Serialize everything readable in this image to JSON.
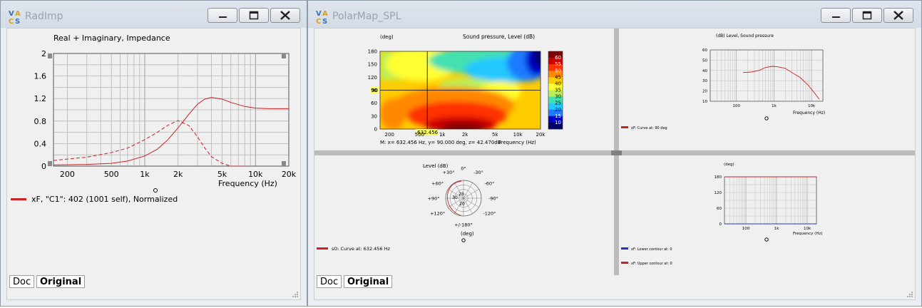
{
  "left_window": {
    "title": "RadImp",
    "tabs": [
      "Doc",
      "Original"
    ],
    "chart_data": {
      "type": "line",
      "title": "Real + Imaginary, Impedance",
      "xlabel": "Frequency  (Hz)",
      "ylabel": "",
      "x_scale": "log",
      "xlim": [
        150,
        20000
      ],
      "ylim": [
        0,
        2
      ],
      "x_ticks": [
        "200",
        "500",
        "1k",
        "2k",
        "5k",
        "10k",
        "20k"
      ],
      "y_ticks": [
        "0",
        "0.4",
        "0.8",
        "1.2",
        "1.6",
        "2"
      ],
      "series": [
        {
          "name": "real",
          "style": "solid",
          "x": [
            150,
            300,
            500,
            700,
            1000,
            1300,
            1600,
            2000,
            2500,
            3000,
            3500,
            4000,
            5000,
            6000,
            8000,
            10000,
            13000,
            16000,
            20000
          ],
          "y": [
            0.02,
            0.03,
            0.05,
            0.09,
            0.18,
            0.3,
            0.46,
            0.68,
            0.92,
            1.1,
            1.19,
            1.22,
            1.19,
            1.13,
            1.06,
            1.03,
            1.02,
            1.02,
            1.02
          ]
        },
        {
          "name": "imaginary",
          "style": "dashed",
          "x": [
            150,
            300,
            500,
            700,
            1000,
            1300,
            1600,
            2000,
            2500,
            3000,
            3500,
            4000,
            5000,
            6000,
            7000,
            8000
          ],
          "y": [
            0.1,
            0.16,
            0.24,
            0.32,
            0.47,
            0.6,
            0.72,
            0.81,
            0.72,
            0.52,
            0.32,
            0.17,
            0.05,
            0.0,
            0.0,
            0.0
          ]
        }
      ],
      "legend": "xF, \"C1\": 402 (1001 self), Normalized",
      "legend_color": "#cc2222",
      "grid": true
    }
  },
  "right_window": {
    "title": "PolarMap_SPL",
    "tabs": [
      "Doc",
      "Original"
    ],
    "heatmap": {
      "type": "heatmap",
      "title": "Sound pressure, Level  (dB)",
      "ylabel": "(deg)",
      "xlabel": "Frequency  (Hz)",
      "x_scale": "log",
      "xlim": [
        150,
        20000
      ],
      "ylim": [
        0,
        180
      ],
      "x_ticks": [
        "200",
        "500",
        "1k",
        "2k",
        "5k",
        "10k",
        "20k"
      ],
      "y_ticks": [
        "0",
        "30",
        "60",
        "90",
        "120",
        "150",
        "180"
      ],
      "cursor_x": 632.456,
      "cursor_x_label": "632.456",
      "cursor_y_label": "90",
      "scale_labels": [
        "60",
        "55",
        "50",
        "45",
        "40",
        "35",
        "30",
        "25",
        "20",
        "15",
        "10"
      ],
      "scale_colors": [
        "#7f0000",
        "#cc0000",
        "#ff3300",
        "#ff8800",
        "#ffcc00",
        "#ffff33",
        "#b8f05a",
        "#45e0b0",
        "#22c8ff",
        "#1e7aff",
        "#0000c8",
        "#000066"
      ],
      "marker_readout": "M:  x= 632.456 Hz,  y= 90.000 deg,  z= 42.470dB"
    },
    "small_spl": {
      "type": "line",
      "title": "(dB)  Level, Sound pressure",
      "xlabel": "Frequency    (Hz)",
      "x_scale": "log",
      "xlim": [
        20,
        20000
      ],
      "ylim": [
        10,
        60
      ],
      "x_ticks": [
        "100",
        "1k",
        "10k"
      ],
      "y_ticks": [
        "10",
        "20",
        "30",
        "40",
        "50",
        "60"
      ],
      "series": [
        {
          "name": "xF: Curve at: 90 deg",
          "x": [
            150,
            250,
            400,
            600,
            900,
            1300,
            2000,
            3000,
            5000,
            8000,
            12000,
            16000
          ],
          "y": [
            38,
            38.5,
            40,
            43,
            44,
            43.5,
            42,
            38,
            33,
            26,
            18,
            12
          ]
        }
      ],
      "legend": "xF: Curve at: 90 deg"
    },
    "polar": {
      "type": "polar",
      "title": "Level  (dB)",
      "unit": "(deg)",
      "angle_labels": [
        "0°",
        "-30°",
        "-60°",
        "-90°",
        "-120°",
        "+/-180°",
        "+120°",
        "+90°",
        "+60°",
        "+30°"
      ],
      "ring_labels": [
        "25",
        "30",
        "20"
      ],
      "legend": "sO: Curve at: 632.456 Hz"
    },
    "contour": {
      "type": "line",
      "title": "(deg)",
      "xlabel": "Frequency    (Hz)",
      "x_scale": "log",
      "xlim": [
        20,
        20000
      ],
      "ylim": [
        0,
        180
      ],
      "x_ticks": [
        "100",
        "1k",
        "10k"
      ],
      "y_ticks": [
        "0",
        "60",
        "120",
        "180"
      ],
      "series": [
        {
          "name": "xF: Lower contour at: 0",
          "color": "#2233cc",
          "y_const": 0
        },
        {
          "name": "xF: Upper contour at: 0",
          "color": "#cc2222",
          "y_const": 180
        }
      ]
    }
  }
}
